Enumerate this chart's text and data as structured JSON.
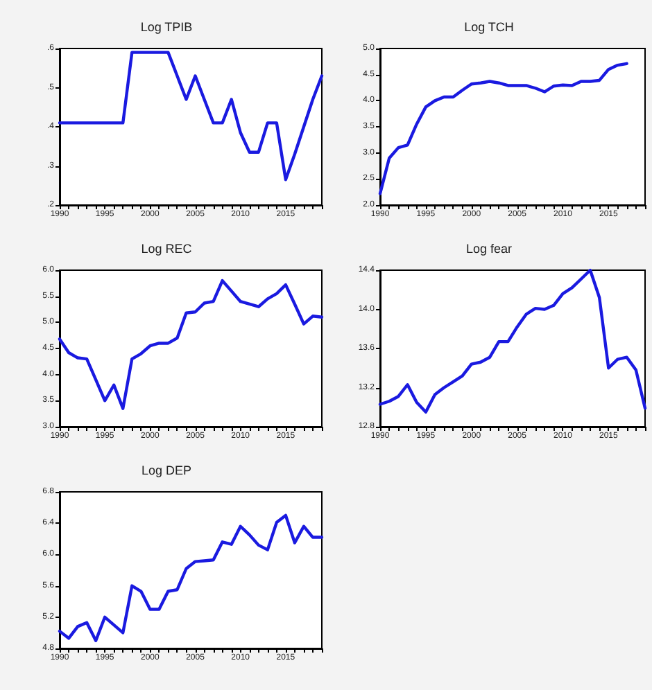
{
  "chart_data": [
    {
      "type": "line",
      "title": "Log TPIB",
      "x": [
        1990,
        1991,
        1992,
        1993,
        1994,
        1995,
        1996,
        1997,
        1998,
        1999,
        2000,
        2001,
        2002,
        2003,
        2004,
        2005,
        2006,
        2007,
        2008,
        2009,
        2010,
        2011,
        2012,
        2013,
        2014,
        2015,
        2016,
        2017,
        2018,
        2019
      ],
      "series": [
        {
          "color": "#1a1ae0",
          "values": [
            0.41,
            0.41,
            0.41,
            0.41,
            0.41,
            0.41,
            0.41,
            0.41,
            0.59,
            0.59,
            0.59,
            0.59,
            0.59,
            0.53,
            0.47,
            0.53,
            0.47,
            0.41,
            0.41,
            0.47,
            0.385,
            0.335,
            0.335,
            0.41,
            0.41,
            0.265,
            0.33,
            0.4,
            0.47,
            0.53
          ]
        }
      ],
      "xlim": [
        1990,
        2019
      ],
      "xticks": [
        1990,
        {
          "value": 1991,
          "label": null
        },
        {
          "value": 1992,
          "label": null
        },
        {
          "value": 1993,
          "label": null
        },
        {
          "value": 1994,
          "label": null
        },
        1995,
        {
          "value": 1996,
          "label": null
        },
        {
          "value": 1997,
          "label": null
        },
        {
          "value": 1998,
          "label": null
        },
        {
          "value": 1999,
          "label": null
        },
        2000,
        {
          "value": 2001,
          "label": null
        },
        {
          "value": 2002,
          "label": null
        },
        {
          "value": 2003,
          "label": null
        },
        {
          "value": 2004,
          "label": null
        },
        2005,
        {
          "value": 2006,
          "label": null
        },
        {
          "value": 2007,
          "label": null
        },
        {
          "value": 2008,
          "label": null
        },
        {
          "value": 2009,
          "label": null
        },
        2010,
        {
          "value": 2011,
          "label": null
        },
        {
          "value": 2012,
          "label": null
        },
        {
          "value": 2013,
          "label": null
        },
        {
          "value": 2014,
          "label": null
        },
        2015,
        {
          "value": 2016,
          "label": null
        },
        {
          "value": 2017,
          "label": null
        },
        {
          "value": 2018,
          "label": null
        },
        {
          "value": 2019,
          "label": null
        }
      ],
      "ylim": [
        0.2,
        0.6
      ],
      "yticks": [
        {
          "value": 0.2,
          "label": ".2"
        },
        {
          "value": 0.3,
          "label": ".3"
        },
        {
          "value": 0.4,
          "label": ".4"
        },
        {
          "value": 0.5,
          "label": ".5"
        },
        {
          "value": 0.6,
          "label": ".6"
        }
      ],
      "grid": false,
      "marker": "none",
      "line_style": "solid"
    },
    {
      "type": "line",
      "title": "Log TCH",
      "x": [
        1990,
        1991,
        1992,
        1993,
        1994,
        1995,
        1996,
        1997,
        1998,
        1999,
        2000,
        2001,
        2002,
        2003,
        2004,
        2005,
        2006,
        2007,
        2008,
        2009,
        2010,
        2011,
        2012,
        2013,
        2014,
        2015,
        2016,
        2017
      ],
      "series": [
        {
          "color": "#1a1ae0",
          "values": [
            2.22,
            2.9,
            3.1,
            3.15,
            3.55,
            3.88,
            4.0,
            4.07,
            4.07,
            4.2,
            4.32,
            4.34,
            4.37,
            4.34,
            4.29,
            4.29,
            4.29,
            4.24,
            4.17,
            4.28,
            4.3,
            4.29,
            4.37,
            4.37,
            4.39,
            4.6,
            4.68,
            4.71
          ]
        }
      ],
      "xlim": [
        1990,
        2019
      ],
      "xticks": [
        1990,
        {
          "value": 1991,
          "label": null
        },
        {
          "value": 1992,
          "label": null
        },
        {
          "value": 1993,
          "label": null
        },
        {
          "value": 1994,
          "label": null
        },
        1995,
        {
          "value": 1996,
          "label": null
        },
        {
          "value": 1997,
          "label": null
        },
        {
          "value": 1998,
          "label": null
        },
        {
          "value": 1999,
          "label": null
        },
        2000,
        {
          "value": 2001,
          "label": null
        },
        {
          "value": 2002,
          "label": null
        },
        {
          "value": 2003,
          "label": null
        },
        {
          "value": 2004,
          "label": null
        },
        2005,
        {
          "value": 2006,
          "label": null
        },
        {
          "value": 2007,
          "label": null
        },
        {
          "value": 2008,
          "label": null
        },
        {
          "value": 2009,
          "label": null
        },
        2010,
        {
          "value": 2011,
          "label": null
        },
        {
          "value": 2012,
          "label": null
        },
        {
          "value": 2013,
          "label": null
        },
        {
          "value": 2014,
          "label": null
        },
        2015,
        {
          "value": 2016,
          "label": null
        },
        {
          "value": 2017,
          "label": null
        },
        {
          "value": 2018,
          "label": null
        },
        {
          "value": 2019,
          "label": null
        }
      ],
      "ylim": [
        2.0,
        5.0
      ],
      "yticks": [
        {
          "value": 2.0,
          "label": "2.0"
        },
        2.5,
        {
          "value": 3.0,
          "label": "3.0"
        },
        3.5,
        {
          "value": 4.0,
          "label": "4.0"
        },
        4.5,
        {
          "value": 5.0,
          "label": "5.0"
        }
      ],
      "grid": false,
      "marker": "none",
      "line_style": "solid"
    },
    {
      "type": "line",
      "title": "Log REC",
      "x": [
        1990,
        1991,
        1992,
        1993,
        1994,
        1995,
        1996,
        1997,
        1998,
        1999,
        2000,
        2001,
        2002,
        2003,
        2004,
        2005,
        2006,
        2007,
        2008,
        2009,
        2010,
        2011,
        2012,
        2013,
        2014,
        2015,
        2016,
        2017,
        2018,
        2019
      ],
      "series": [
        {
          "color": "#1a1ae0",
          "values": [
            4.68,
            4.42,
            4.32,
            4.3,
            3.9,
            3.5,
            3.8,
            3.35,
            4.3,
            4.4,
            4.55,
            4.6,
            4.6,
            4.7,
            5.18,
            5.2,
            5.37,
            5.4,
            5.8,
            5.6,
            5.4,
            5.35,
            5.3,
            5.45,
            5.55,
            5.72,
            5.35,
            4.97,
            5.12,
            5.1
          ]
        }
      ],
      "xlim": [
        1990,
        2019
      ],
      "xticks": [
        1990,
        {
          "value": 1991,
          "label": null
        },
        {
          "value": 1992,
          "label": null
        },
        {
          "value": 1993,
          "label": null
        },
        {
          "value": 1994,
          "label": null
        },
        1995,
        {
          "value": 1996,
          "label": null
        },
        {
          "value": 1997,
          "label": null
        },
        {
          "value": 1998,
          "label": null
        },
        {
          "value": 1999,
          "label": null
        },
        2000,
        {
          "value": 2001,
          "label": null
        },
        {
          "value": 2002,
          "label": null
        },
        {
          "value": 2003,
          "label": null
        },
        {
          "value": 2004,
          "label": null
        },
        2005,
        {
          "value": 2006,
          "label": null
        },
        {
          "value": 2007,
          "label": null
        },
        {
          "value": 2008,
          "label": null
        },
        {
          "value": 2009,
          "label": null
        },
        2010,
        {
          "value": 2011,
          "label": null
        },
        {
          "value": 2012,
          "label": null
        },
        {
          "value": 2013,
          "label": null
        },
        {
          "value": 2014,
          "label": null
        },
        2015,
        {
          "value": 2016,
          "label": null
        },
        {
          "value": 2017,
          "label": null
        },
        {
          "value": 2018,
          "label": null
        },
        {
          "value": 2019,
          "label": null
        }
      ],
      "ylim": [
        3.0,
        6.0
      ],
      "yticks": [
        {
          "value": 3.0,
          "label": "3.0"
        },
        3.5,
        {
          "value": 4.0,
          "label": "4.0"
        },
        4.5,
        {
          "value": 5.0,
          "label": "5.0"
        },
        5.5,
        {
          "value": 6.0,
          "label": "6.0"
        }
      ],
      "grid": false,
      "marker": "none",
      "line_style": "solid"
    },
    {
      "type": "line",
      "title": "Log fear",
      "x": [
        1990,
        1991,
        1992,
        1993,
        1994,
        1995,
        1996,
        1997,
        1998,
        1999,
        2000,
        2001,
        2002,
        2003,
        2004,
        2005,
        2006,
        2007,
        2008,
        2009,
        2010,
        2011,
        2012,
        2013,
        2014,
        2015,
        2016,
        2017,
        2018,
        2019
      ],
      "series": [
        {
          "color": "#1a1ae0",
          "values": [
            13.03,
            13.06,
            13.11,
            13.23,
            13.05,
            12.95,
            13.13,
            13.2,
            13.26,
            13.32,
            13.44,
            13.46,
            13.51,
            13.67,
            13.67,
            13.82,
            13.95,
            14.01,
            14.0,
            14.04,
            14.16,
            14.22,
            14.31,
            14.4,
            14.12,
            13.4,
            13.49,
            13.51,
            13.38,
            12.99
          ]
        }
      ],
      "xlim": [
        1990,
        2019
      ],
      "xticks": [
        1990,
        {
          "value": 1991,
          "label": null
        },
        {
          "value": 1992,
          "label": null
        },
        {
          "value": 1993,
          "label": null
        },
        {
          "value": 1994,
          "label": null
        },
        1995,
        {
          "value": 1996,
          "label": null
        },
        {
          "value": 1997,
          "label": null
        },
        {
          "value": 1998,
          "label": null
        },
        {
          "value": 1999,
          "label": null
        },
        2000,
        {
          "value": 2001,
          "label": null
        },
        {
          "value": 2002,
          "label": null
        },
        {
          "value": 2003,
          "label": null
        },
        {
          "value": 2004,
          "label": null
        },
        2005,
        {
          "value": 2006,
          "label": null
        },
        {
          "value": 2007,
          "label": null
        },
        {
          "value": 2008,
          "label": null
        },
        {
          "value": 2009,
          "label": null
        },
        2010,
        {
          "value": 2011,
          "label": null
        },
        {
          "value": 2012,
          "label": null
        },
        {
          "value": 2013,
          "label": null
        },
        {
          "value": 2014,
          "label": null
        },
        2015,
        {
          "value": 2016,
          "label": null
        },
        {
          "value": 2017,
          "label": null
        },
        {
          "value": 2018,
          "label": null
        },
        {
          "value": 2019,
          "label": null
        }
      ],
      "ylim": [
        12.8,
        14.4
      ],
      "yticks": [
        12.8,
        13.2,
        13.6,
        {
          "value": 14.0,
          "label": "14.0"
        },
        14.4
      ],
      "grid": false,
      "marker": "none",
      "line_style": "solid"
    },
    {
      "type": "line",
      "title": "Log DEP",
      "x": [
        1990,
        1991,
        1992,
        1993,
        1994,
        1995,
        1996,
        1997,
        1998,
        1999,
        2000,
        2001,
        2002,
        2003,
        2004,
        2005,
        2006,
        2007,
        2008,
        2009,
        2010,
        2011,
        2012,
        2013,
        2014,
        2015,
        2016,
        2017,
        2018,
        2019
      ],
      "series": [
        {
          "color": "#1a1ae0",
          "values": [
            5.02,
            4.93,
            5.08,
            5.13,
            4.9,
            5.2,
            5.1,
            5.0,
            5.6,
            5.53,
            5.3,
            5.3,
            5.53,
            5.55,
            5.82,
            5.91,
            5.92,
            5.93,
            6.16,
            6.13,
            6.36,
            6.25,
            6.12,
            6.06,
            6.41,
            6.5,
            6.15,
            6.36,
            6.22,
            6.22
          ]
        }
      ],
      "xlim": [
        1990,
        2019
      ],
      "xticks": [
        1990,
        {
          "value": 1991,
          "label": null
        },
        {
          "value": 1992,
          "label": null
        },
        {
          "value": 1993,
          "label": null
        },
        {
          "value": 1994,
          "label": null
        },
        1995,
        {
          "value": 1996,
          "label": null
        },
        {
          "value": 1997,
          "label": null
        },
        {
          "value": 1998,
          "label": null
        },
        {
          "value": 1999,
          "label": null
        },
        2000,
        {
          "value": 2001,
          "label": null
        },
        {
          "value": 2002,
          "label": null
        },
        {
          "value": 2003,
          "label": null
        },
        {
          "value": 2004,
          "label": null
        },
        2005,
        {
          "value": 2006,
          "label": null
        },
        {
          "value": 2007,
          "label": null
        },
        {
          "value": 2008,
          "label": null
        },
        {
          "value": 2009,
          "label": null
        },
        2010,
        {
          "value": 2011,
          "label": null
        },
        {
          "value": 2012,
          "label": null
        },
        {
          "value": 2013,
          "label": null
        },
        {
          "value": 2014,
          "label": null
        },
        2015,
        {
          "value": 2016,
          "label": null
        },
        {
          "value": 2017,
          "label": null
        },
        {
          "value": 2018,
          "label": null
        },
        {
          "value": 2019,
          "label": null
        }
      ],
      "ylim": [
        4.8,
        6.8
      ],
      "yticks": [
        4.8,
        5.2,
        5.6,
        {
          "value": 6.0,
          "label": "6.0"
        },
        6.4,
        6.8
      ],
      "grid": false,
      "marker": "none",
      "line_style": "solid"
    }
  ]
}
